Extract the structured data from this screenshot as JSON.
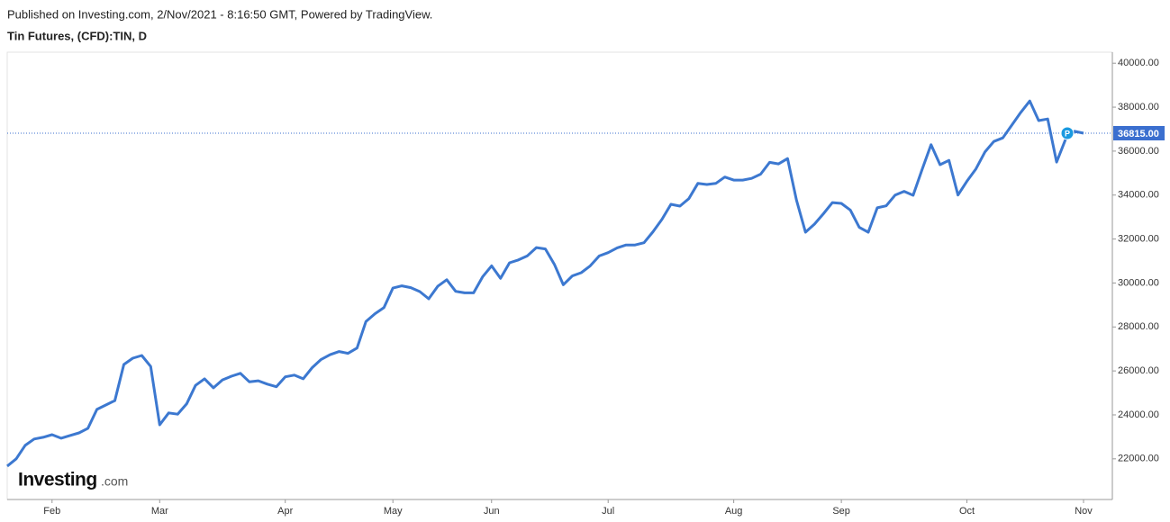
{
  "chart_data": {
    "type": "line",
    "title": "Published on Investing.com, 2/Nov/2021 - 8:16:50 GMT, Powered by TradingView.",
    "subtitle": "Tin Futures, (CFD):TIN, D",
    "logo": {
      "name": "Investing",
      "suffix": ".com"
    },
    "categories": [
      null,
      null,
      null,
      null,
      null,
      "Feb",
      null,
      null,
      null,
      null,
      null,
      null,
      null,
      null,
      null,
      null,
      null,
      "Mar",
      null,
      null,
      null,
      null,
      null,
      null,
      null,
      null,
      null,
      null,
      null,
      null,
      null,
      "Apr",
      null,
      null,
      null,
      null,
      null,
      null,
      null,
      null,
      null,
      null,
      null,
      "May",
      null,
      null,
      null,
      null,
      null,
      null,
      null,
      null,
      null,
      null,
      "Jun",
      null,
      null,
      null,
      null,
      null,
      null,
      null,
      null,
      null,
      null,
      null,
      null,
      "Jul",
      null,
      null,
      null,
      null,
      null,
      null,
      null,
      null,
      null,
      null,
      null,
      null,
      null,
      "Aug",
      null,
      null,
      null,
      null,
      null,
      null,
      null,
      null,
      null,
      null,
      null,
      "Sep",
      null,
      null,
      null,
      null,
      null,
      null,
      null,
      null,
      null,
      null,
      null,
      null,
      null,
      "Oct",
      null,
      null,
      null,
      null,
      null,
      null,
      null,
      null,
      null,
      null,
      null,
      null,
      "Nov"
    ],
    "series": [
      {
        "name": "Tin Futures",
        "color": "#3c78d0",
        "values": [
          21670,
          22000,
          22610,
          22900,
          22980,
          23100,
          22940,
          23060,
          23180,
          23390,
          24250,
          24450,
          24650,
          26290,
          26580,
          26700,
          26200,
          23550,
          24090,
          24030,
          24500,
          25340,
          25640,
          25230,
          25590,
          25760,
          25890,
          25500,
          25550,
          25400,
          25280,
          25730,
          25810,
          25640,
          26150,
          26520,
          26740,
          26880,
          26800,
          27040,
          28250,
          28600,
          28880,
          29770,
          29870,
          29790,
          29610,
          29280,
          29850,
          30150,
          29620,
          29550,
          29550,
          30280,
          30780,
          30210,
          30920,
          31050,
          31240,
          31610,
          31550,
          30850,
          29920,
          30320,
          30470,
          30780,
          31230,
          31380,
          31600,
          31730,
          31730,
          31830,
          32330,
          32900,
          33580,
          33500,
          33840,
          34530,
          34480,
          34530,
          34820,
          34680,
          34680,
          34760,
          34950,
          35490,
          35420,
          35660,
          33770,
          32310,
          32680,
          33150,
          33660,
          33620,
          33320,
          32530,
          32310,
          33420,
          33510,
          34000,
          34170,
          33990,
          35170,
          36290,
          35380,
          35580,
          34000,
          34630,
          35190,
          35960,
          36440,
          36600,
          37180,
          37760,
          38280,
          37390,
          37460,
          35500,
          36540,
          36900,
          36815
        ]
      }
    ],
    "price_line": {
      "value": 36815,
      "label": "36815.00",
      "color": "#3b6fcf"
    },
    "marker_label": "P",
    "ylim": [
      20150,
      40500
    ],
    "yticks": [
      {
        "value": 22000,
        "label": "22000.00"
      },
      {
        "value": 24000,
        "label": "24000.00"
      },
      {
        "value": 26000,
        "label": "26000.00"
      },
      {
        "value": 28000,
        "label": "28000.00"
      },
      {
        "value": 30000,
        "label": "30000.00"
      },
      {
        "value": 32000,
        "label": "32000.00"
      },
      {
        "value": 34000,
        "label": "34000.00"
      },
      {
        "value": 36000,
        "label": "36000.00"
      },
      {
        "value": 38000,
        "label": "38000.00"
      },
      {
        "value": 40000,
        "label": "40000.00"
      }
    ],
    "grid": false
  }
}
